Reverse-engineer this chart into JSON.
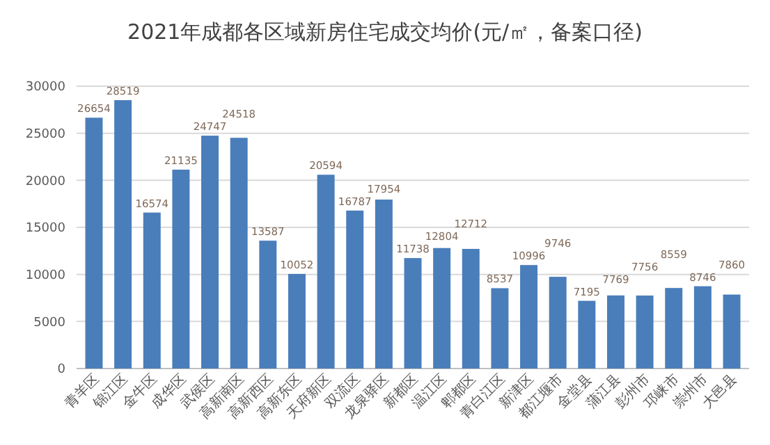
{
  "chart_data": {
    "type": "bar",
    "title": "2021年成都各区域新房住宅成交均价(元/㎡，备案口径)",
    "categories": [
      "青羊区",
      "锦江区",
      "金牛区",
      "成华区",
      "武侯区",
      "高新南区",
      "高新西区",
      "高新东区",
      "天府新区",
      "双流区",
      "龙泉驿区",
      "新都区",
      "温江区",
      "郫都区",
      "青白江区",
      "新津区",
      "都江堰市",
      "金堂县",
      "蒲江县",
      "彭州市",
      "邛崃市",
      "崇州市",
      "大邑县"
    ],
    "values": [
      26654,
      28519,
      16574,
      21135,
      24747,
      24518,
      13587,
      10052,
      20594,
      16787,
      17954,
      11738,
      12804,
      12712,
      8537,
      10996,
      9746,
      7195,
      7769,
      7756,
      8559,
      8746,
      7860
    ],
    "color": "#4a7ebb",
    "ylim": [
      0,
      30000
    ],
    "yticks": [
      0,
      5000,
      10000,
      15000,
      20000,
      25000,
      30000
    ],
    "grid": "y",
    "data_labels": true
  }
}
